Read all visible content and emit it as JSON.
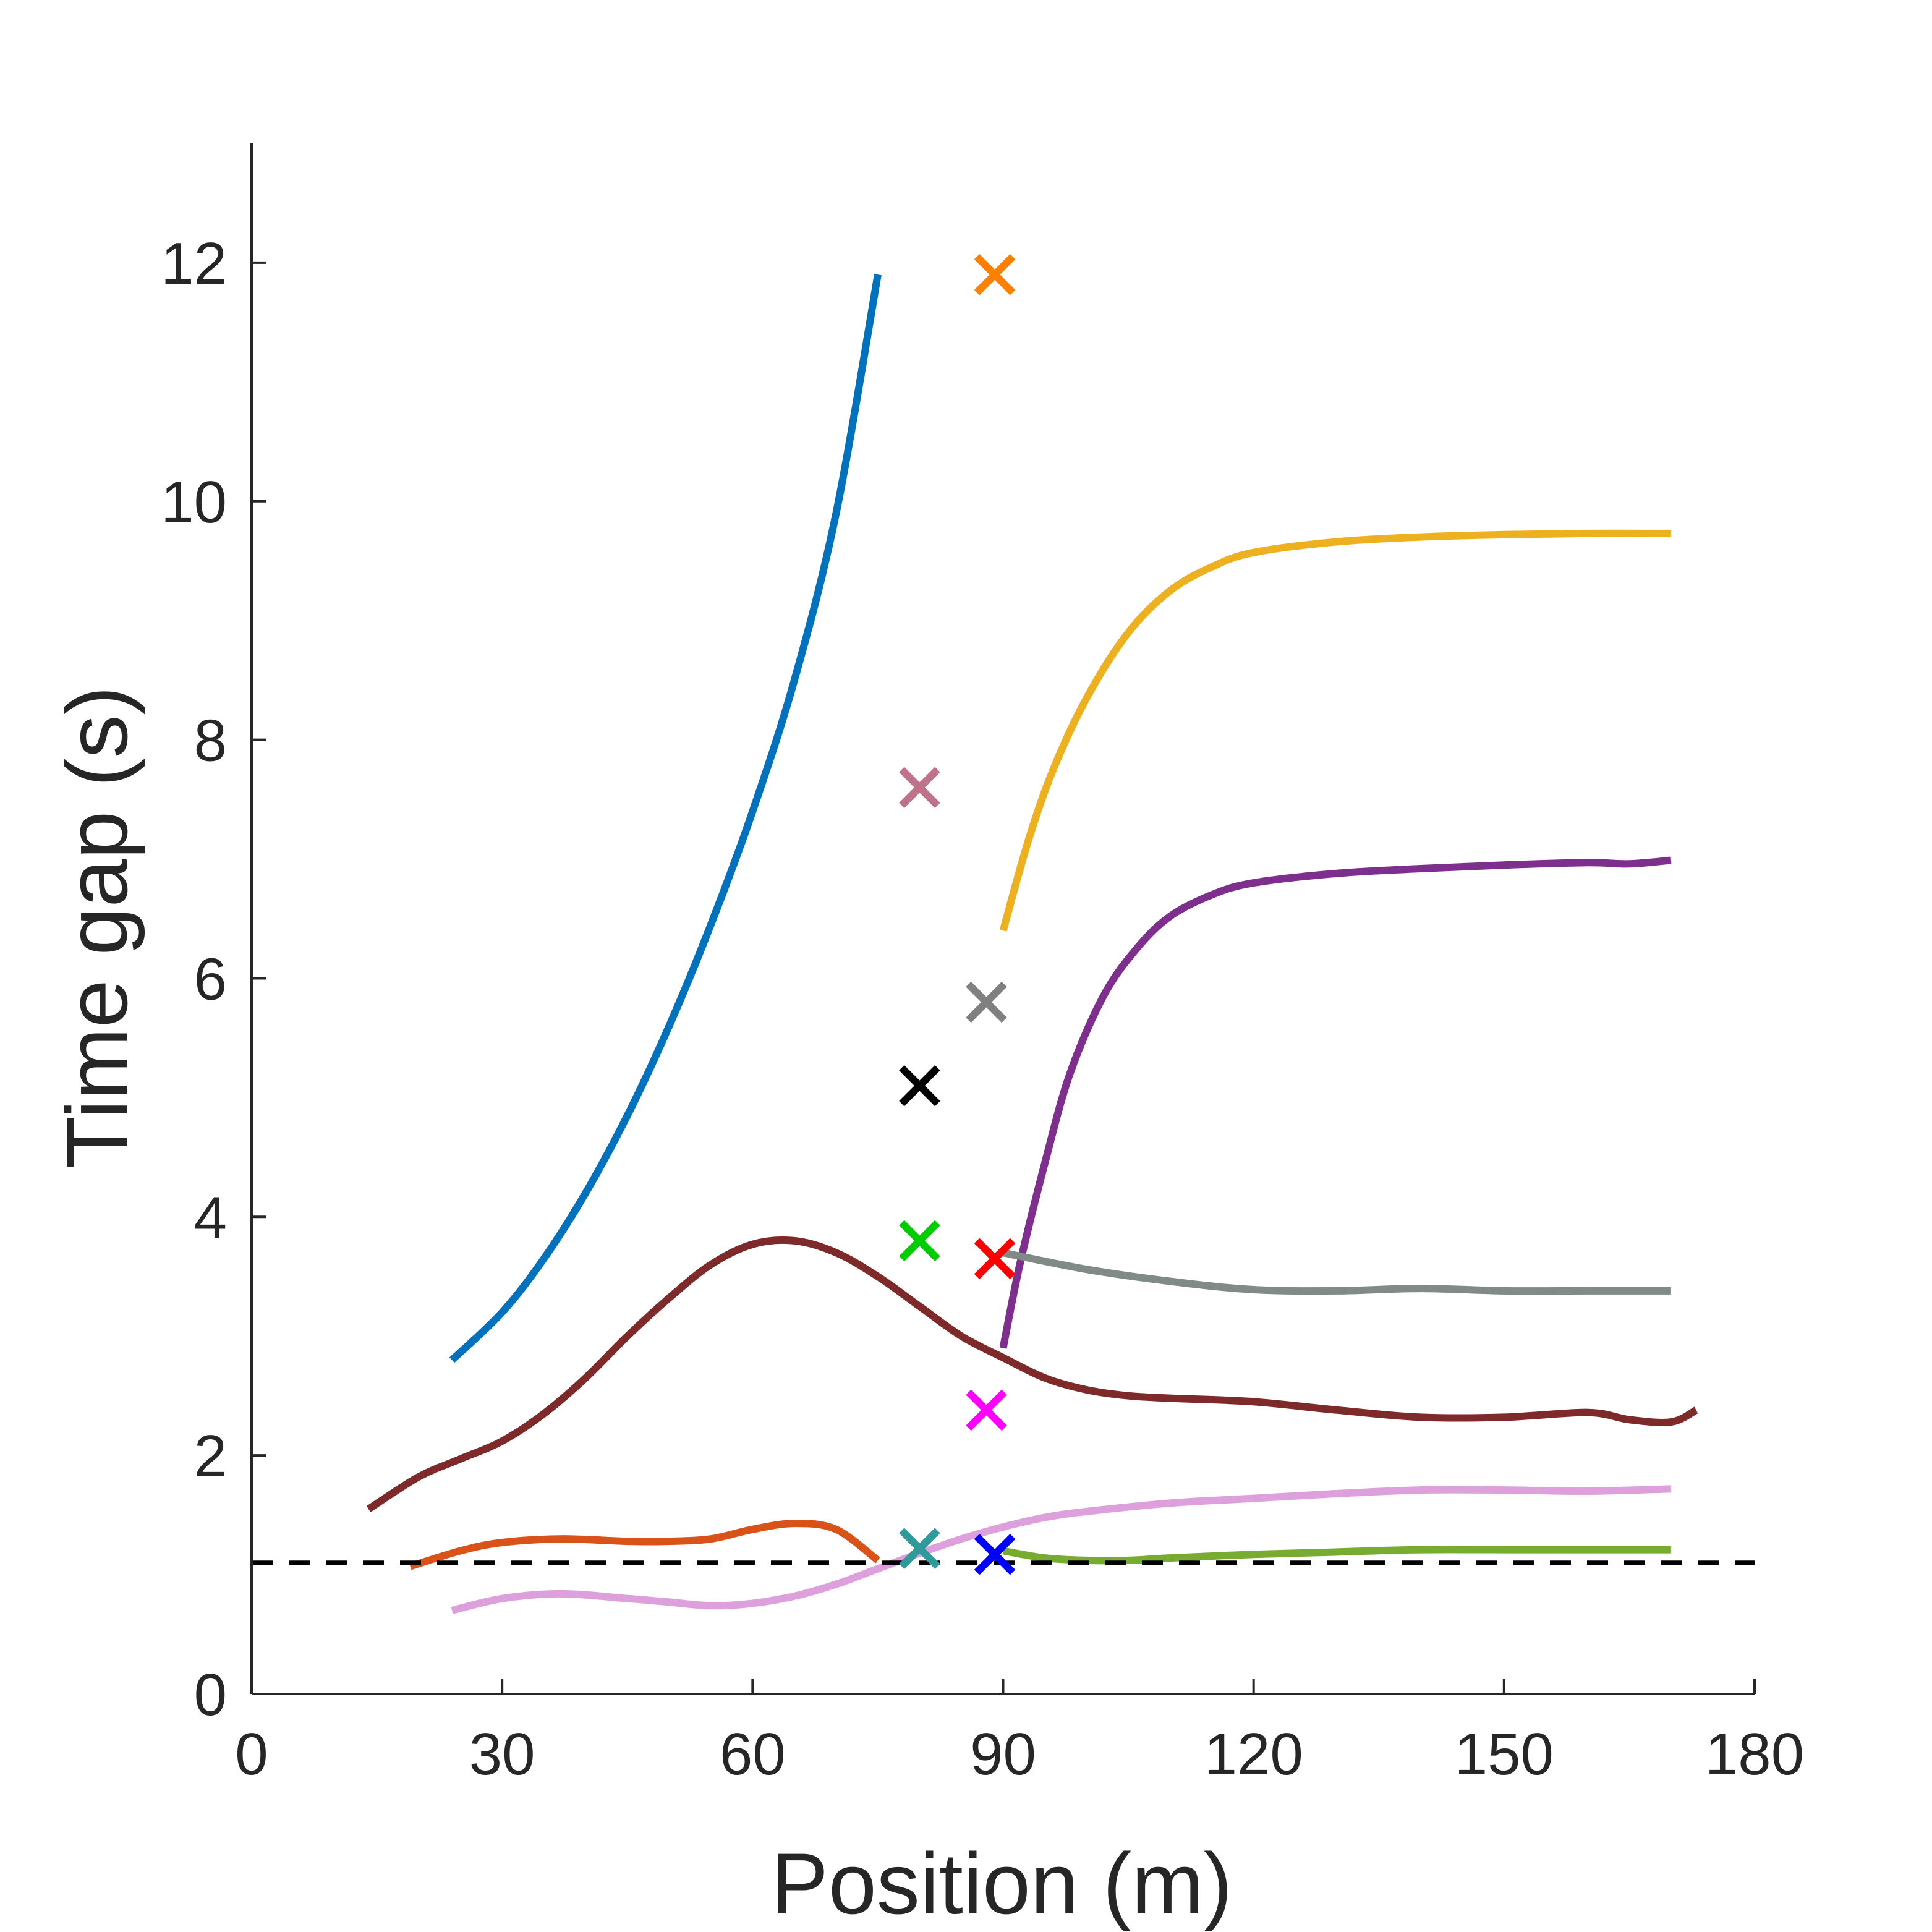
{
  "chart_data": {
    "type": "line",
    "title": "",
    "xlabel": "Position (m)",
    "ylabel": "Time gap (s)",
    "xlim": [
      0,
      180
    ],
    "ylim": [
      0,
      13
    ],
    "xticks": [
      0,
      30,
      60,
      90,
      120,
      150,
      180
    ],
    "yticks": [
      0,
      2,
      4,
      6,
      8,
      10,
      12
    ],
    "grid": false,
    "reference_line": {
      "y": 1.1,
      "style": "dashed",
      "color": "#000000"
    },
    "series": [
      {
        "color": "#0072BD",
        "points": [
          [
            24,
            2.8
          ],
          [
            30,
            3.2
          ],
          [
            35,
            3.65
          ],
          [
            40,
            4.2
          ],
          [
            45,
            4.85
          ],
          [
            50,
            5.6
          ],
          [
            55,
            6.45
          ],
          [
            60,
            7.4
          ],
          [
            65,
            8.5
          ],
          [
            70,
            9.9
          ],
          [
            75,
            11.9
          ]
        ]
      },
      {
        "color": "#EDB120",
        "points": [
          [
            90,
            6.4
          ],
          [
            93,
            7.15
          ],
          [
            96,
            7.75
          ],
          [
            100,
            8.35
          ],
          [
            105,
            8.9
          ],
          [
            110,
            9.25
          ],
          [
            115,
            9.45
          ],
          [
            120,
            9.57
          ],
          [
            130,
            9.66
          ],
          [
            140,
            9.7
          ],
          [
            150,
            9.72
          ],
          [
            160,
            9.73
          ],
          [
            170,
            9.73
          ]
        ]
      },
      {
        "color": "#7E2F8E",
        "points": [
          [
            90,
            2.9
          ],
          [
            92,
            3.6
          ],
          [
            95,
            4.45
          ],
          [
            98,
            5.2
          ],
          [
            102,
            5.85
          ],
          [
            106,
            6.25
          ],
          [
            110,
            6.52
          ],
          [
            115,
            6.7
          ],
          [
            120,
            6.8
          ],
          [
            130,
            6.88
          ],
          [
            140,
            6.92
          ],
          [
            150,
            6.95
          ],
          [
            160,
            6.97
          ],
          [
            165,
            6.96
          ],
          [
            170,
            6.99
          ]
        ]
      },
      {
        "color": "#808A87",
        "points": [
          [
            90,
            3.7
          ],
          [
            100,
            3.56
          ],
          [
            110,
            3.46
          ],
          [
            120,
            3.39
          ],
          [
            130,
            3.38
          ],
          [
            140,
            3.4
          ],
          [
            150,
            3.38
          ],
          [
            160,
            3.38
          ],
          [
            170,
            3.38
          ]
        ]
      },
      {
        "color": "#7E2A2A",
        "points": [
          [
            14,
            1.55
          ],
          [
            20,
            1.82
          ],
          [
            25,
            1.97
          ],
          [
            30,
            2.12
          ],
          [
            35,
            2.35
          ],
          [
            40,
            2.65
          ],
          [
            45,
            3.0
          ],
          [
            50,
            3.32
          ],
          [
            55,
            3.6
          ],
          [
            60,
            3.77
          ],
          [
            65,
            3.8
          ],
          [
            70,
            3.7
          ],
          [
            75,
            3.5
          ],
          [
            80,
            3.25
          ],
          [
            85,
            3.0
          ],
          [
            90,
            2.82
          ],
          [
            95,
            2.65
          ],
          [
            100,
            2.55
          ],
          [
            105,
            2.5
          ],
          [
            110,
            2.48
          ],
          [
            120,
            2.45
          ],
          [
            130,
            2.38
          ],
          [
            140,
            2.32
          ],
          [
            150,
            2.32
          ],
          [
            160,
            2.36
          ],
          [
            165,
            2.3
          ],
          [
            170,
            2.28
          ],
          [
            173,
            2.38
          ]
        ]
      },
      {
        "color": "#D95319",
        "points": [
          [
            19,
            1.07
          ],
          [
            25,
            1.2
          ],
          [
            30,
            1.27
          ],
          [
            37,
            1.3
          ],
          [
            45,
            1.28
          ],
          [
            50,
            1.28
          ],
          [
            55,
            1.3
          ],
          [
            60,
            1.38
          ],
          [
            65,
            1.43
          ],
          [
            70,
            1.38
          ],
          [
            75,
            1.12
          ]
        ]
      },
      {
        "color": "#DDA0DD",
        "points": [
          [
            24,
            0.7
          ],
          [
            30,
            0.8
          ],
          [
            37,
            0.84
          ],
          [
            45,
            0.8
          ],
          [
            50,
            0.77
          ],
          [
            55,
            0.74
          ],
          [
            60,
            0.76
          ],
          [
            65,
            0.82
          ],
          [
            70,
            0.92
          ],
          [
            75,
            1.05
          ],
          [
            80,
            1.18
          ],
          [
            85,
            1.3
          ],
          [
            90,
            1.4
          ],
          [
            95,
            1.48
          ],
          [
            100,
            1.53
          ],
          [
            110,
            1.6
          ],
          [
            120,
            1.64
          ],
          [
            130,
            1.68
          ],
          [
            140,
            1.71
          ],
          [
            150,
            1.71
          ],
          [
            160,
            1.7
          ],
          [
            170,
            1.72
          ]
        ]
      },
      {
        "color": "#77AC30",
        "points": [
          [
            90,
            1.2
          ],
          [
            95,
            1.14
          ],
          [
            100,
            1.12
          ],
          [
            105,
            1.12
          ],
          [
            110,
            1.14
          ],
          [
            120,
            1.17
          ],
          [
            130,
            1.19
          ],
          [
            140,
            1.21
          ],
          [
            150,
            1.21
          ],
          [
            160,
            1.21
          ],
          [
            170,
            1.21
          ]
        ]
      }
    ],
    "markers": [
      {
        "x": 89,
        "y": 11.9,
        "color": "#FF8000"
      },
      {
        "x": 80,
        "y": 7.6,
        "color": "#C0728A"
      },
      {
        "x": 88,
        "y": 5.8,
        "color": "#808080"
      },
      {
        "x": 80,
        "y": 5.1,
        "color": "#000000"
      },
      {
        "x": 80,
        "y": 3.8,
        "color": "#00CC00"
      },
      {
        "x": 89,
        "y": 3.65,
        "color": "#FF0000"
      },
      {
        "x": 88,
        "y": 2.38,
        "color": "#FF00FF"
      },
      {
        "x": 80,
        "y": 1.22,
        "color": "#2F9A9A"
      },
      {
        "x": 89,
        "y": 1.17,
        "color": "#0000FF"
      }
    ]
  }
}
